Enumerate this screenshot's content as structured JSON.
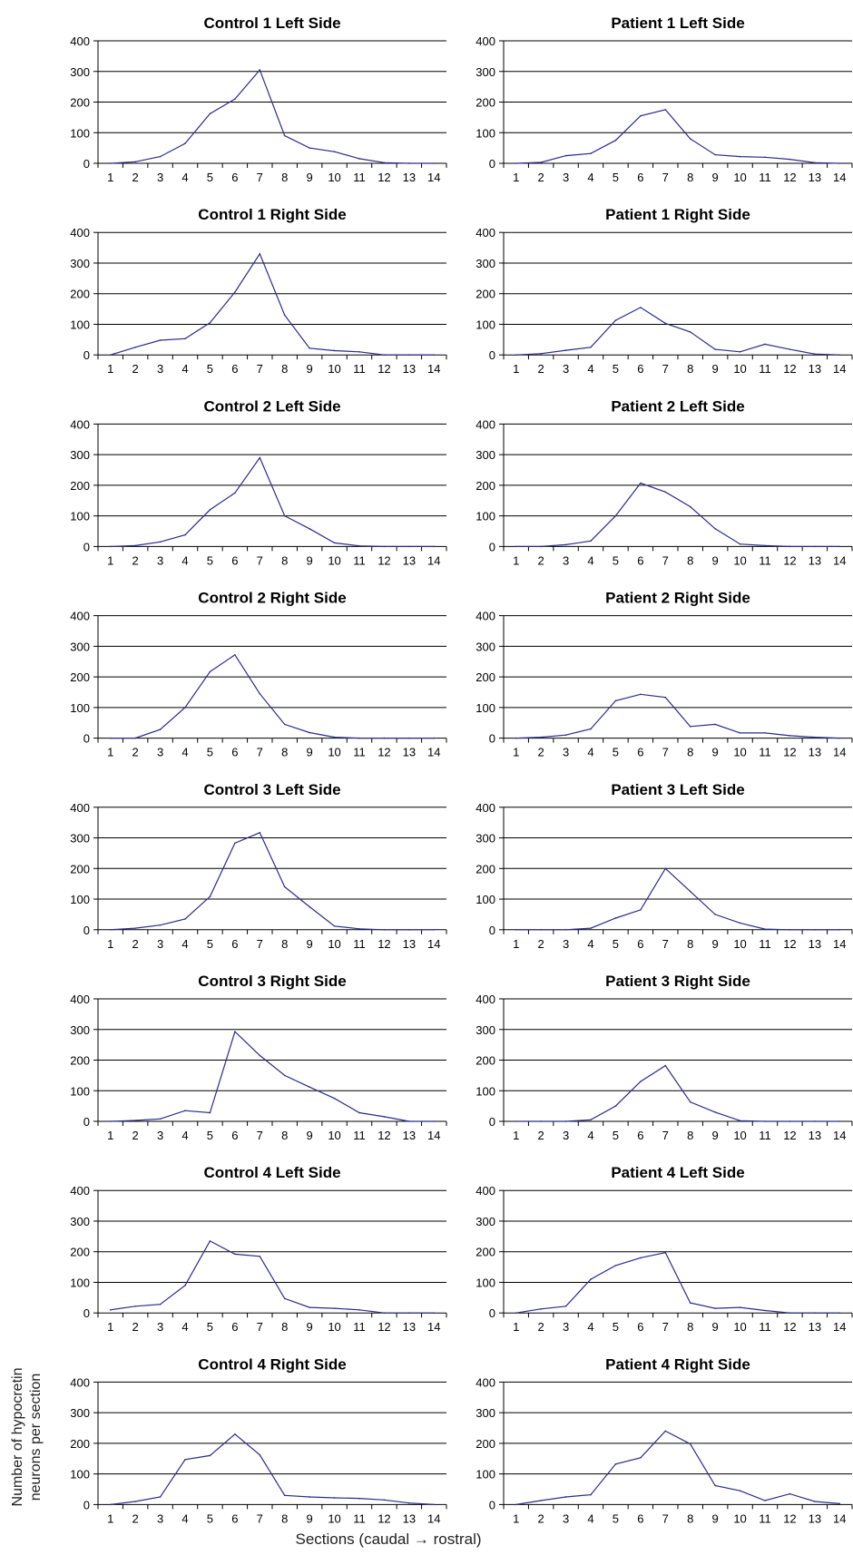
{
  "figure": {
    "ylabel_line1": "Number of hypocretin",
    "ylabel_line2": "neurons per section",
    "xlabel": "Sections (caudal → rostral)",
    "line_color": "#2b2b8c",
    "grid_color": "#000000"
  },
  "chart_data": [
    {
      "type": "line",
      "title": "Control 1 Left Side",
      "categories": [
        "1",
        "2",
        "3",
        "4",
        "5",
        "6",
        "7",
        "8",
        "9",
        "10",
        "11",
        "12",
        "13",
        "14"
      ],
      "ylim": [
        0,
        400
      ],
      "yticks": [
        "0",
        "100",
        "200",
        "300",
        "400"
      ],
      "series": [
        {
          "values": [
            0,
            5,
            22,
            65,
            162,
            210,
            305,
            90,
            50,
            38,
            15,
            2,
            0,
            0
          ]
        }
      ]
    },
    {
      "type": "line",
      "title": "Patient 1 Left Side",
      "categories": [
        "1",
        "2",
        "3",
        "4",
        "5",
        "6",
        "7",
        "8",
        "9",
        "10",
        "11",
        "12",
        "13",
        "14"
      ],
      "ylim": [
        0,
        400
      ],
      "yticks": [
        "0",
        "100",
        "200",
        "300",
        "400"
      ],
      "series": [
        {
          "values": [
            0,
            3,
            25,
            32,
            75,
            155,
            175,
            80,
            28,
            22,
            20,
            13,
            2,
            0
          ]
        }
      ]
    },
    {
      "type": "line",
      "title": "Control 1 Right Side",
      "categories": [
        "1",
        "2",
        "3",
        "4",
        "5",
        "6",
        "7",
        "8",
        "9",
        "10",
        "11",
        "12",
        "13",
        "14"
      ],
      "ylim": [
        0,
        400
      ],
      "yticks": [
        "0",
        "100",
        "200",
        "300",
        "400"
      ],
      "series": [
        {
          "values": [
            0,
            25,
            48,
            53,
            105,
            205,
            330,
            130,
            22,
            14,
            10,
            0,
            0,
            0
          ]
        }
      ]
    },
    {
      "type": "line",
      "title": "Patient 1 Right Side",
      "categories": [
        "1",
        "2",
        "3",
        "4",
        "5",
        "6",
        "7",
        "8",
        "9",
        "10",
        "11",
        "12",
        "13",
        "14"
      ],
      "ylim": [
        0,
        400
      ],
      "yticks": [
        "0",
        "100",
        "200",
        "300",
        "400"
      ],
      "series": [
        {
          "values": [
            0,
            4,
            15,
            25,
            113,
            155,
            103,
            75,
            18,
            10,
            35,
            18,
            3,
            0
          ]
        }
      ]
    },
    {
      "type": "line",
      "title": "Control 2 Left Side",
      "categories": [
        "1",
        "2",
        "3",
        "4",
        "5",
        "6",
        "7",
        "8",
        "9",
        "10",
        "11",
        "12",
        "13",
        "14"
      ],
      "ylim": [
        0,
        400
      ],
      "yticks": [
        "0",
        "100",
        "200",
        "300",
        "400"
      ],
      "series": [
        {
          "values": [
            0,
            3,
            15,
            38,
            120,
            175,
            290,
            100,
            58,
            12,
            2,
            0,
            0,
            0
          ]
        }
      ]
    },
    {
      "type": "line",
      "title": "Patient 2 Left Side",
      "categories": [
        "1",
        "2",
        "3",
        "4",
        "5",
        "6",
        "7",
        "8",
        "9",
        "10",
        "11",
        "12",
        "13",
        "14"
      ],
      "ylim": [
        0,
        400
      ],
      "yticks": [
        "0",
        "100",
        "200",
        "300",
        "400"
      ],
      "series": [
        {
          "values": [
            0,
            0,
            6,
            18,
            100,
            207,
            178,
            130,
            58,
            8,
            3,
            0,
            0,
            0
          ]
        }
      ]
    },
    {
      "type": "line",
      "title": "Control 2 Right Side",
      "categories": [
        "1",
        "2",
        "3",
        "4",
        "5",
        "6",
        "7",
        "8",
        "9",
        "10",
        "11",
        "12",
        "13",
        "14"
      ],
      "ylim": [
        0,
        400
      ],
      "yticks": [
        "0",
        "100",
        "200",
        "300",
        "400"
      ],
      "series": [
        {
          "values": [
            0,
            0,
            28,
            100,
            217,
            272,
            145,
            45,
            18,
            3,
            0,
            0,
            0,
            0
          ]
        }
      ]
    },
    {
      "type": "line",
      "title": "Patient 2 Right Side",
      "categories": [
        "1",
        "2",
        "3",
        "4",
        "5",
        "6",
        "7",
        "8",
        "9",
        "10",
        "11",
        "12",
        "13",
        "14"
      ],
      "ylim": [
        0,
        400
      ],
      "yticks": [
        "0",
        "100",
        "200",
        "300",
        "400"
      ],
      "series": [
        {
          "values": [
            0,
            3,
            10,
            30,
            122,
            143,
            133,
            38,
            45,
            17,
            17,
            8,
            3,
            0
          ]
        }
      ]
    },
    {
      "type": "line",
      "title": "Control 3 Left Side",
      "categories": [
        "1",
        "2",
        "3",
        "4",
        "5",
        "6",
        "7",
        "8",
        "9",
        "10",
        "11",
        "12",
        "13",
        "14"
      ],
      "ylim": [
        0,
        400
      ],
      "yticks": [
        "0",
        "100",
        "200",
        "300",
        "400"
      ],
      "series": [
        {
          "values": [
            0,
            5,
            15,
            35,
            108,
            283,
            317,
            140,
            75,
            12,
            3,
            0,
            0,
            0
          ]
        }
      ]
    },
    {
      "type": "line",
      "title": "Patient 3 Left Side",
      "categories": [
        "1",
        "2",
        "3",
        "4",
        "5",
        "6",
        "7",
        "8",
        "9",
        "10",
        "11",
        "12",
        "13",
        "14"
      ],
      "ylim": [
        0,
        400
      ],
      "yticks": [
        "0",
        "100",
        "200",
        "300",
        "400"
      ],
      "series": [
        {
          "values": [
            0,
            0,
            0,
            5,
            38,
            65,
            200,
            125,
            50,
            22,
            2,
            0,
            0,
            0
          ]
        }
      ]
    },
    {
      "type": "line",
      "title": "Control 3 Right Side",
      "categories": [
        "1",
        "2",
        "3",
        "4",
        "5",
        "6",
        "7",
        "8",
        "9",
        "10",
        "11",
        "12",
        "13",
        "14"
      ],
      "ylim": [
        0,
        400
      ],
      "yticks": [
        "0",
        "100",
        "200",
        "300",
        "400"
      ],
      "series": [
        {
          "values": [
            0,
            3,
            8,
            35,
            28,
            293,
            215,
            150,
            112,
            75,
            28,
            15,
            0,
            0
          ]
        }
      ]
    },
    {
      "type": "line",
      "title": "Patient 3 Right Side",
      "categories": [
        "1",
        "2",
        "3",
        "4",
        "5",
        "6",
        "7",
        "8",
        "9",
        "10",
        "11",
        "12",
        "13",
        "14"
      ],
      "ylim": [
        0,
        400
      ],
      "yticks": [
        "0",
        "100",
        "200",
        "300",
        "400"
      ],
      "series": [
        {
          "values": [
            0,
            0,
            0,
            5,
            50,
            130,
            182,
            63,
            30,
            2,
            0,
            0,
            0,
            0
          ]
        }
      ]
    },
    {
      "type": "line",
      "title": "Control 4 Left Side",
      "categories": [
        "1",
        "2",
        "3",
        "4",
        "5",
        "6",
        "7",
        "8",
        "9",
        "10",
        "11",
        "12",
        "13",
        "14"
      ],
      "ylim": [
        0,
        400
      ],
      "yticks": [
        "0",
        "100",
        "200",
        "300",
        "400"
      ],
      "series": [
        {
          "values": [
            10,
            22,
            28,
            90,
            235,
            192,
            185,
            47,
            18,
            15,
            10,
            0,
            0,
            0
          ]
        }
      ]
    },
    {
      "type": "line",
      "title": "Patient 4 Left Side",
      "categories": [
        "1",
        "2",
        "3",
        "4",
        "5",
        "6",
        "7",
        "8",
        "9",
        "10",
        "11",
        "12",
        "13",
        "14"
      ],
      "ylim": [
        0,
        400
      ],
      "yticks": [
        "0",
        "100",
        "200",
        "300",
        "400"
      ],
      "series": [
        {
          "values": [
            0,
            13,
            22,
            110,
            155,
            180,
            197,
            33,
            15,
            18,
            8,
            0,
            0,
            0
          ]
        }
      ]
    },
    {
      "type": "line",
      "title": "Control 4 Right Side",
      "categories": [
        "1",
        "2",
        "3",
        "4",
        "5",
        "6",
        "7",
        "8",
        "9",
        "10",
        "11",
        "12",
        "13",
        "14"
      ],
      "ylim": [
        0,
        400
      ],
      "yticks": [
        "0",
        "100",
        "200",
        "300",
        "400"
      ],
      "series": [
        {
          "values": [
            0,
            10,
            25,
            147,
            160,
            230,
            162,
            30,
            25,
            22,
            20,
            15,
            5,
            0
          ]
        }
      ]
    },
    {
      "type": "line",
      "title": "Patient 4 Right Side",
      "categories": [
        "1",
        "2",
        "3",
        "4",
        "5",
        "6",
        "7",
        "8",
        "9",
        "10",
        "11",
        "12",
        "13",
        "14"
      ],
      "ylim": [
        0,
        400
      ],
      "yticks": [
        "0",
        "100",
        "200",
        "300",
        "400"
      ],
      "series": [
        {
          "values": [
            0,
            13,
            25,
            32,
            132,
            153,
            240,
            198,
            62,
            45,
            13,
            35,
            10,
            3
          ]
        }
      ]
    }
  ]
}
